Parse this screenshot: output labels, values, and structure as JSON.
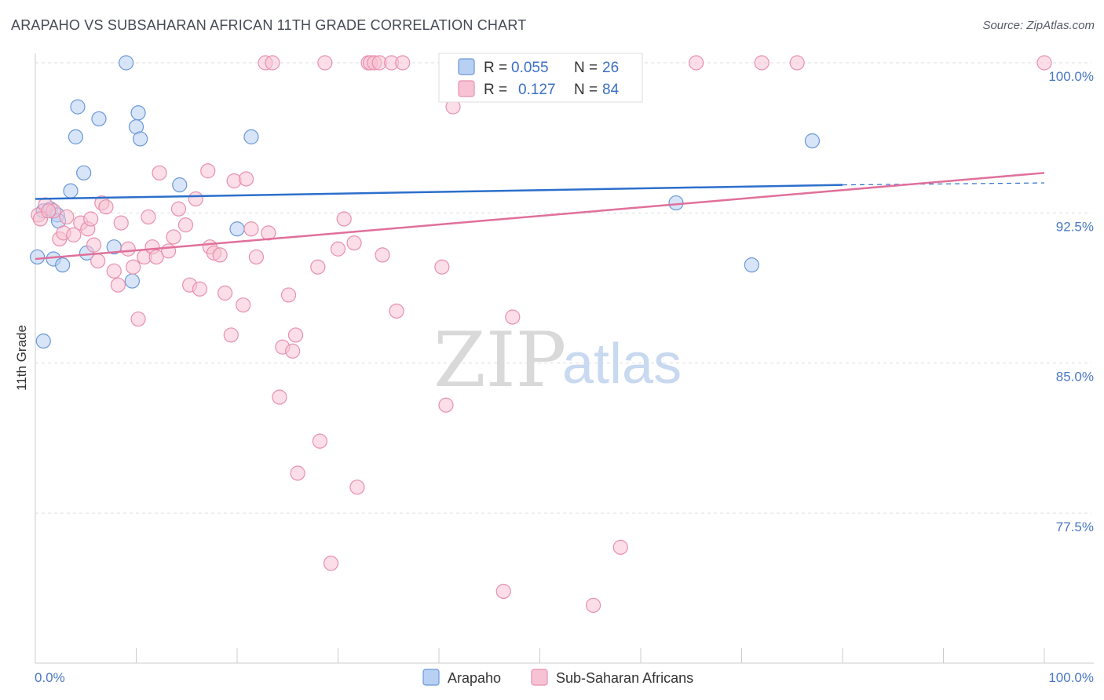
{
  "title": "ARAPAHO VS SUBSAHARAN AFRICAN 11TH GRADE CORRELATION CHART",
  "source": "Source: ZipAtlas.com",
  "watermark": {
    "zip": "ZIP",
    "atlas": "atlas"
  },
  "colors": {
    "arapaho_fill": "#b8d0f4",
    "arapaho_stroke": "#6a97d8",
    "arapaho_line": "#2c6fcc",
    "subsaharan_fill": "#f7c3d4",
    "subsaharan_stroke": "#e890ad",
    "subsaharan_line": "#e0709a",
    "grid": "#dddddd",
    "tick_label": "#4a78c4"
  },
  "legend": {
    "rows": [
      {
        "r_label": "R =",
        "r_value": "0.055",
        "n_label": "N =",
        "n_value": "26"
      },
      {
        "r_label": "R =",
        "r_value": "0.127",
        "n_label": "N =",
        "n_value": "84"
      }
    ]
  },
  "bottom_legend": [
    "Arapaho",
    "Sub-Saharan Africans"
  ],
  "chart_data": {
    "type": "scatter",
    "title": "ARAPAHO VS SUBSAHARAN AFRICAN 11TH GRADE CORRELATION CHART",
    "xlabel": "",
    "ylabel": "11th Grade",
    "xlim": [
      0,
      100
    ],
    "ylim": [
      71.0,
      101.0
    ],
    "x_tick_labels": [
      "0.0%",
      "100.0%"
    ],
    "y_ticks": [
      77.5,
      85.0,
      92.5,
      100.0
    ],
    "y_tick_labels": [
      "77.5%",
      "85.0%",
      "92.5%",
      "100.0%"
    ],
    "grid": true,
    "legend_placement": "top-center",
    "series": [
      {
        "name": "Arapaho",
        "trend": {
          "x": [
            0,
            80
          ],
          "y": [
            93.2,
            93.9
          ],
          "dashed_to": [
            100,
            94.0
          ]
        },
        "points": [
          [
            0.2,
            90.3
          ],
          [
            0.8,
            86.1
          ],
          [
            0.8,
            92.6
          ],
          [
            1.5,
            92.7
          ],
          [
            1.8,
            90.2
          ],
          [
            2.2,
            92.4
          ],
          [
            2.3,
            92.1
          ],
          [
            2.7,
            89.9
          ],
          [
            3.5,
            93.6
          ],
          [
            4.0,
            96.3
          ],
          [
            4.2,
            97.8
          ],
          [
            4.8,
            94.5
          ],
          [
            5.1,
            90.5
          ],
          [
            6.3,
            97.2
          ],
          [
            7.8,
            90.8
          ],
          [
            9.0,
            100.0
          ],
          [
            9.6,
            89.1
          ],
          [
            10.0,
            96.8
          ],
          [
            10.2,
            97.5
          ],
          [
            10.4,
            96.2
          ],
          [
            14.3,
            93.9
          ],
          [
            20.0,
            91.7
          ],
          [
            21.4,
            96.3
          ],
          [
            63.5,
            93.0
          ],
          [
            71.0,
            89.9
          ],
          [
            77.0,
            96.1
          ]
        ]
      },
      {
        "name": "Sub-Saharan Africans",
        "trend": {
          "x": [
            0,
            100
          ],
          "y": [
            90.2,
            94.5
          ]
        },
        "points": [
          [
            0.3,
            92.4
          ],
          [
            0.5,
            92.2
          ],
          [
            1.0,
            92.9
          ],
          [
            1.8,
            92.6
          ],
          [
            2.4,
            91.2
          ],
          [
            2.8,
            91.5
          ],
          [
            3.1,
            92.3
          ],
          [
            3.8,
            91.4
          ],
          [
            4.5,
            92.0
          ],
          [
            5.2,
            91.7
          ],
          [
            5.5,
            92.2
          ],
          [
            5.8,
            90.9
          ],
          [
            6.2,
            90.1
          ],
          [
            6.6,
            93.0
          ],
          [
            7.0,
            92.8
          ],
          [
            7.8,
            89.6
          ],
          [
            8.2,
            88.9
          ],
          [
            8.5,
            92.0
          ],
          [
            9.2,
            90.7
          ],
          [
            9.7,
            89.8
          ],
          [
            10.2,
            87.2
          ],
          [
            10.8,
            90.3
          ],
          [
            11.2,
            92.3
          ],
          [
            11.6,
            90.8
          ],
          [
            12.0,
            90.3
          ],
          [
            12.3,
            94.5
          ],
          [
            13.2,
            90.6
          ],
          [
            13.7,
            91.3
          ],
          [
            14.2,
            92.7
          ],
          [
            14.9,
            91.9
          ],
          [
            15.3,
            88.9
          ],
          [
            15.9,
            93.2
          ],
          [
            16.3,
            88.7
          ],
          [
            17.1,
            94.6
          ],
          [
            17.3,
            90.8
          ],
          [
            17.7,
            90.5
          ],
          [
            18.3,
            90.4
          ],
          [
            18.8,
            88.5
          ],
          [
            19.4,
            86.4
          ],
          [
            19.7,
            94.1
          ],
          [
            20.6,
            87.9
          ],
          [
            20.9,
            94.2
          ],
          [
            21.4,
            91.7
          ],
          [
            21.9,
            90.3
          ],
          [
            22.8,
            100.0
          ],
          [
            23.1,
            91.5
          ],
          [
            23.5,
            100.0
          ],
          [
            24.2,
            83.3
          ],
          [
            24.5,
            85.8
          ],
          [
            25.1,
            88.4
          ],
          [
            25.5,
            85.6
          ],
          [
            25.8,
            86.4
          ],
          [
            26.0,
            79.5
          ],
          [
            28.0,
            89.8
          ],
          [
            28.2,
            81.1
          ],
          [
            28.7,
            100.0
          ],
          [
            29.3,
            75.0
          ],
          [
            30.0,
            90.7
          ],
          [
            30.6,
            92.2
          ],
          [
            31.6,
            91.0
          ],
          [
            31.9,
            78.8
          ],
          [
            33.0,
            100.0
          ],
          [
            33.2,
            100.0
          ],
          [
            33.6,
            100.0
          ],
          [
            34.1,
            100.0
          ],
          [
            34.4,
            90.4
          ],
          [
            35.3,
            100.0
          ],
          [
            35.8,
            87.6
          ],
          [
            36.4,
            100.0
          ],
          [
            40.3,
            89.8
          ],
          [
            40.7,
            82.9
          ],
          [
            41.4,
            97.8
          ],
          [
            42.0,
            99.2
          ],
          [
            46.4,
            73.6
          ],
          [
            47.3,
            87.3
          ],
          [
            52.3,
            100.0
          ],
          [
            54.2,
            99.2
          ],
          [
            55.3,
            72.9
          ],
          [
            58.0,
            75.8
          ],
          [
            65.5,
            100.0
          ],
          [
            72.0,
            100.0
          ],
          [
            75.5,
            100.0
          ],
          [
            100.0,
            100.0
          ],
          [
            1.3,
            92.6
          ]
        ]
      }
    ]
  }
}
